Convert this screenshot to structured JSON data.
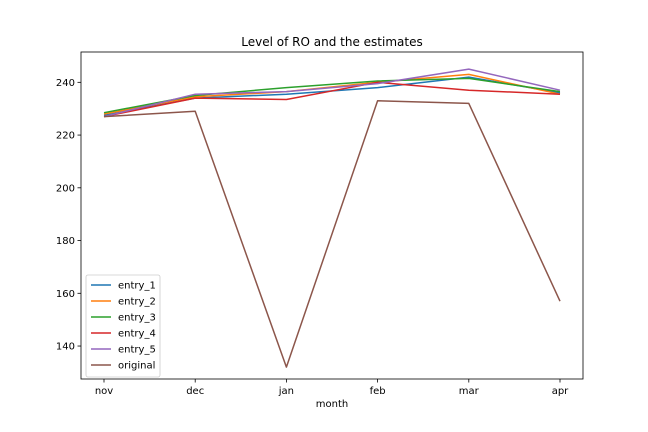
{
  "chart_data": {
    "type": "line",
    "title": "Level of RO and the estimates",
    "xlabel": "month",
    "ylabel": "",
    "categories": [
      "nov",
      "dec",
      "jan",
      "feb",
      "mar",
      "apr"
    ],
    "ylim": [
      127.5,
      251.5
    ],
    "yticks": [
      140,
      160,
      180,
      200,
      220,
      240
    ],
    "grid": false,
    "legend_position": "lower-left",
    "series": [
      {
        "name": "entry_1",
        "color": "#1f77b4",
        "values": [
          227.5,
          234.0,
          235.5,
          238.0,
          242.0,
          236.0
        ]
      },
      {
        "name": "entry_2",
        "color": "#ff7f0e",
        "values": [
          228.0,
          234.5,
          236.5,
          240.0,
          243.0,
          235.5
        ]
      },
      {
        "name": "entry_3",
        "color": "#2ca02c",
        "values": [
          228.5,
          235.0,
          238.0,
          240.5,
          241.5,
          236.5
        ]
      },
      {
        "name": "entry_4",
        "color": "#d62728",
        "values": [
          227.0,
          234.0,
          233.5,
          240.0,
          237.0,
          235.5
        ]
      },
      {
        "name": "entry_5",
        "color": "#9467bd",
        "values": [
          227.0,
          235.5,
          236.5,
          239.5,
          245.0,
          237.0
        ]
      },
      {
        "name": "original",
        "color": "#8c564b",
        "values": [
          227.0,
          229.0,
          132.0,
          233.0,
          232.0,
          157.0
        ]
      }
    ]
  }
}
